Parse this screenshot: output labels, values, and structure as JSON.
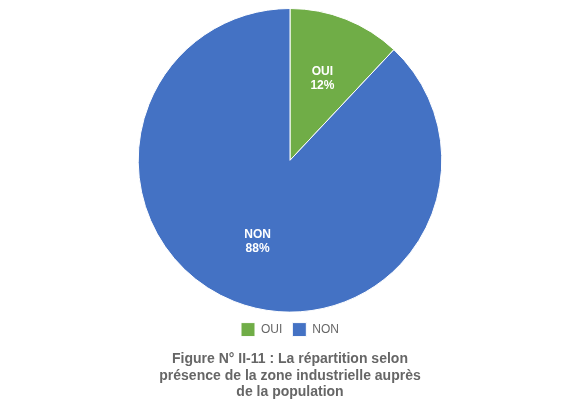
{
  "chart_data": {
    "type": "pie",
    "title": [
      "Figure N° II-11 : La répartition selon",
      "présence de la zone industrielle auprès",
      "de la population"
    ],
    "categories": [
      "OUI",
      "NON"
    ],
    "values": [
      12,
      88
    ],
    "value_labels": [
      "OUI\n12%",
      "NON\n88%"
    ],
    "data_labels": true,
    "colors": [
      "#70AD47",
      "#4472C4"
    ],
    "legend": "bottom"
  }
}
